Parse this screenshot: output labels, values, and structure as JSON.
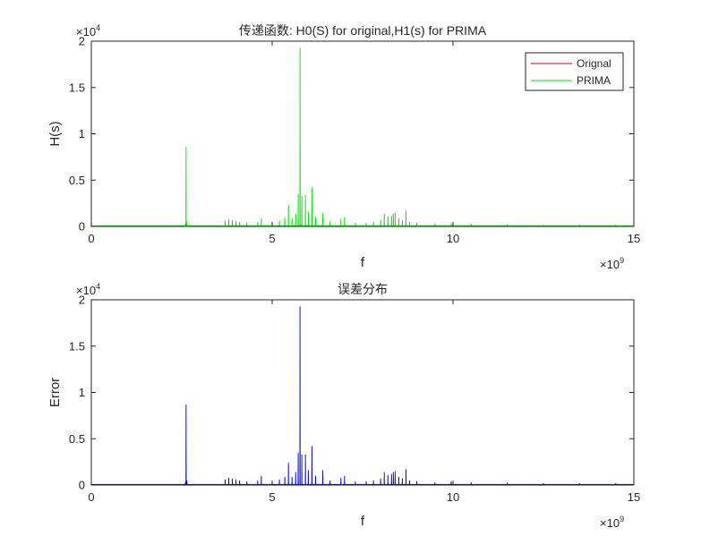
{
  "chart_data": [
    {
      "type": "line",
      "title": "传递函数: H0(S) for original,H1(s) for PRIMA",
      "xlabel": "f",
      "ylabel": "H(s)",
      "x_multiplier": "×10",
      "x_exponent": "9",
      "y_multiplier": "×10",
      "y_exponent": "4",
      "xlim": [
        0,
        15
      ],
      "ylim": [
        0,
        2
      ],
      "xticks": [
        "0",
        "5",
        "10",
        "15"
      ],
      "yticks": [
        "0",
        "0.5",
        "1",
        "1.5",
        "2"
      ],
      "legend_position": "top-right",
      "series": [
        {
          "name": "Orignal",
          "color": "#d00000",
          "baseline": 0.005,
          "peaks": [
            [
              0.0,
              0.008
            ],
            [
              1.5,
              0.006
            ],
            [
              2.62,
              0.01
            ],
            [
              5.8,
              0.012
            ],
            [
              8.5,
              0.01
            ],
            [
              15.0,
              0.005
            ]
          ]
        },
        {
          "name": "PRIMA",
          "color": "#00e000",
          "baseline": 0.006,
          "peaks": [
            [
              2.6,
              0.03
            ],
            [
              2.62,
              0.86
            ],
            [
              2.64,
              0.05
            ],
            [
              3.7,
              0.06
            ],
            [
              3.8,
              0.08
            ],
            [
              3.9,
              0.07
            ],
            [
              4.0,
              0.06
            ],
            [
              4.1,
              0.05
            ],
            [
              4.3,
              0.04
            ],
            [
              4.6,
              0.05
            ],
            [
              4.7,
              0.09
            ],
            [
              5.0,
              0.05
            ],
            [
              5.2,
              0.06
            ],
            [
              5.35,
              0.09
            ],
            [
              5.45,
              0.23
            ],
            [
              5.55,
              0.09
            ],
            [
              5.65,
              0.14
            ],
            [
              5.72,
              0.35
            ],
            [
              5.77,
              1.93
            ],
            [
              5.82,
              0.33
            ],
            [
              5.92,
              0.34
            ],
            [
              6.0,
              0.16
            ],
            [
              6.1,
              0.42
            ],
            [
              6.2,
              0.1
            ],
            [
              6.4,
              0.15
            ],
            [
              6.6,
              0.05
            ],
            [
              6.9,
              0.08
            ],
            [
              7.0,
              0.1
            ],
            [
              7.3,
              0.04
            ],
            [
              7.6,
              0.04
            ],
            [
              7.8,
              0.05
            ],
            [
              8.0,
              0.07
            ],
            [
              8.1,
              0.14
            ],
            [
              8.2,
              0.11
            ],
            [
              8.3,
              0.12
            ],
            [
              8.35,
              0.14
            ],
            [
              8.4,
              0.15
            ],
            [
              8.5,
              0.09
            ],
            [
              8.6,
              0.07
            ],
            [
              8.7,
              0.17
            ],
            [
              8.8,
              0.05
            ],
            [
              9.0,
              0.04
            ],
            [
              9.5,
              0.03
            ],
            [
              9.95,
              0.04
            ],
            [
              10.5,
              0.03
            ],
            [
              11.5,
              0.025
            ],
            [
              12.5,
              0.02
            ],
            [
              13.5,
              0.02
            ],
            [
              14.5,
              0.02
            ]
          ]
        }
      ]
    },
    {
      "type": "line",
      "title": "误差分布",
      "xlabel": "f",
      "ylabel": "Error",
      "x_multiplier": "×10",
      "x_exponent": "9",
      "y_multiplier": "×10",
      "y_exponent": "4",
      "xlim": [
        0,
        15
      ],
      "ylim": [
        0,
        2
      ],
      "xticks": [
        "0",
        "5",
        "10",
        "15"
      ],
      "yticks": [
        "0",
        "0.5",
        "1",
        "1.5",
        "2"
      ],
      "series": [
        {
          "color": "#0000e0",
          "baseline": 0.006,
          "peaks": [
            [
              2.6,
              0.03
            ],
            [
              2.62,
              0.87
            ],
            [
              2.64,
              0.05
            ],
            [
              3.7,
              0.06
            ],
            [
              3.8,
              0.08
            ],
            [
              3.9,
              0.07
            ],
            [
              4.0,
              0.06
            ],
            [
              4.1,
              0.05
            ],
            [
              4.3,
              0.04
            ],
            [
              4.6,
              0.05
            ],
            [
              4.7,
              0.1
            ],
            [
              5.0,
              0.05
            ],
            [
              5.2,
              0.06
            ],
            [
              5.35,
              0.09
            ],
            [
              5.45,
              0.24
            ],
            [
              5.55,
              0.09
            ],
            [
              5.65,
              0.14
            ],
            [
              5.72,
              0.35
            ],
            [
              5.77,
              1.93
            ],
            [
              5.82,
              0.33
            ],
            [
              5.92,
              0.33
            ],
            [
              6.0,
              0.16
            ],
            [
              6.1,
              0.42
            ],
            [
              6.2,
              0.1
            ],
            [
              6.4,
              0.16
            ],
            [
              6.6,
              0.05
            ],
            [
              6.9,
              0.08
            ],
            [
              7.0,
              0.1
            ],
            [
              7.3,
              0.04
            ],
            [
              7.6,
              0.04
            ],
            [
              7.8,
              0.05
            ],
            [
              8.0,
              0.07
            ],
            [
              8.1,
              0.14
            ],
            [
              8.2,
              0.11
            ],
            [
              8.3,
              0.12
            ],
            [
              8.35,
              0.14
            ],
            [
              8.4,
              0.15
            ],
            [
              8.5,
              0.09
            ],
            [
              8.6,
              0.07
            ],
            [
              8.7,
              0.17
            ],
            [
              8.8,
              0.05
            ],
            [
              9.0,
              0.04
            ],
            [
              9.5,
              0.03
            ],
            [
              9.95,
              0.04
            ],
            [
              10.5,
              0.03
            ],
            [
              11.5,
              0.025
            ],
            [
              12.5,
              0.02
            ],
            [
              13.5,
              0.02
            ],
            [
              14.5,
              0.02
            ]
          ]
        }
      ]
    }
  ]
}
